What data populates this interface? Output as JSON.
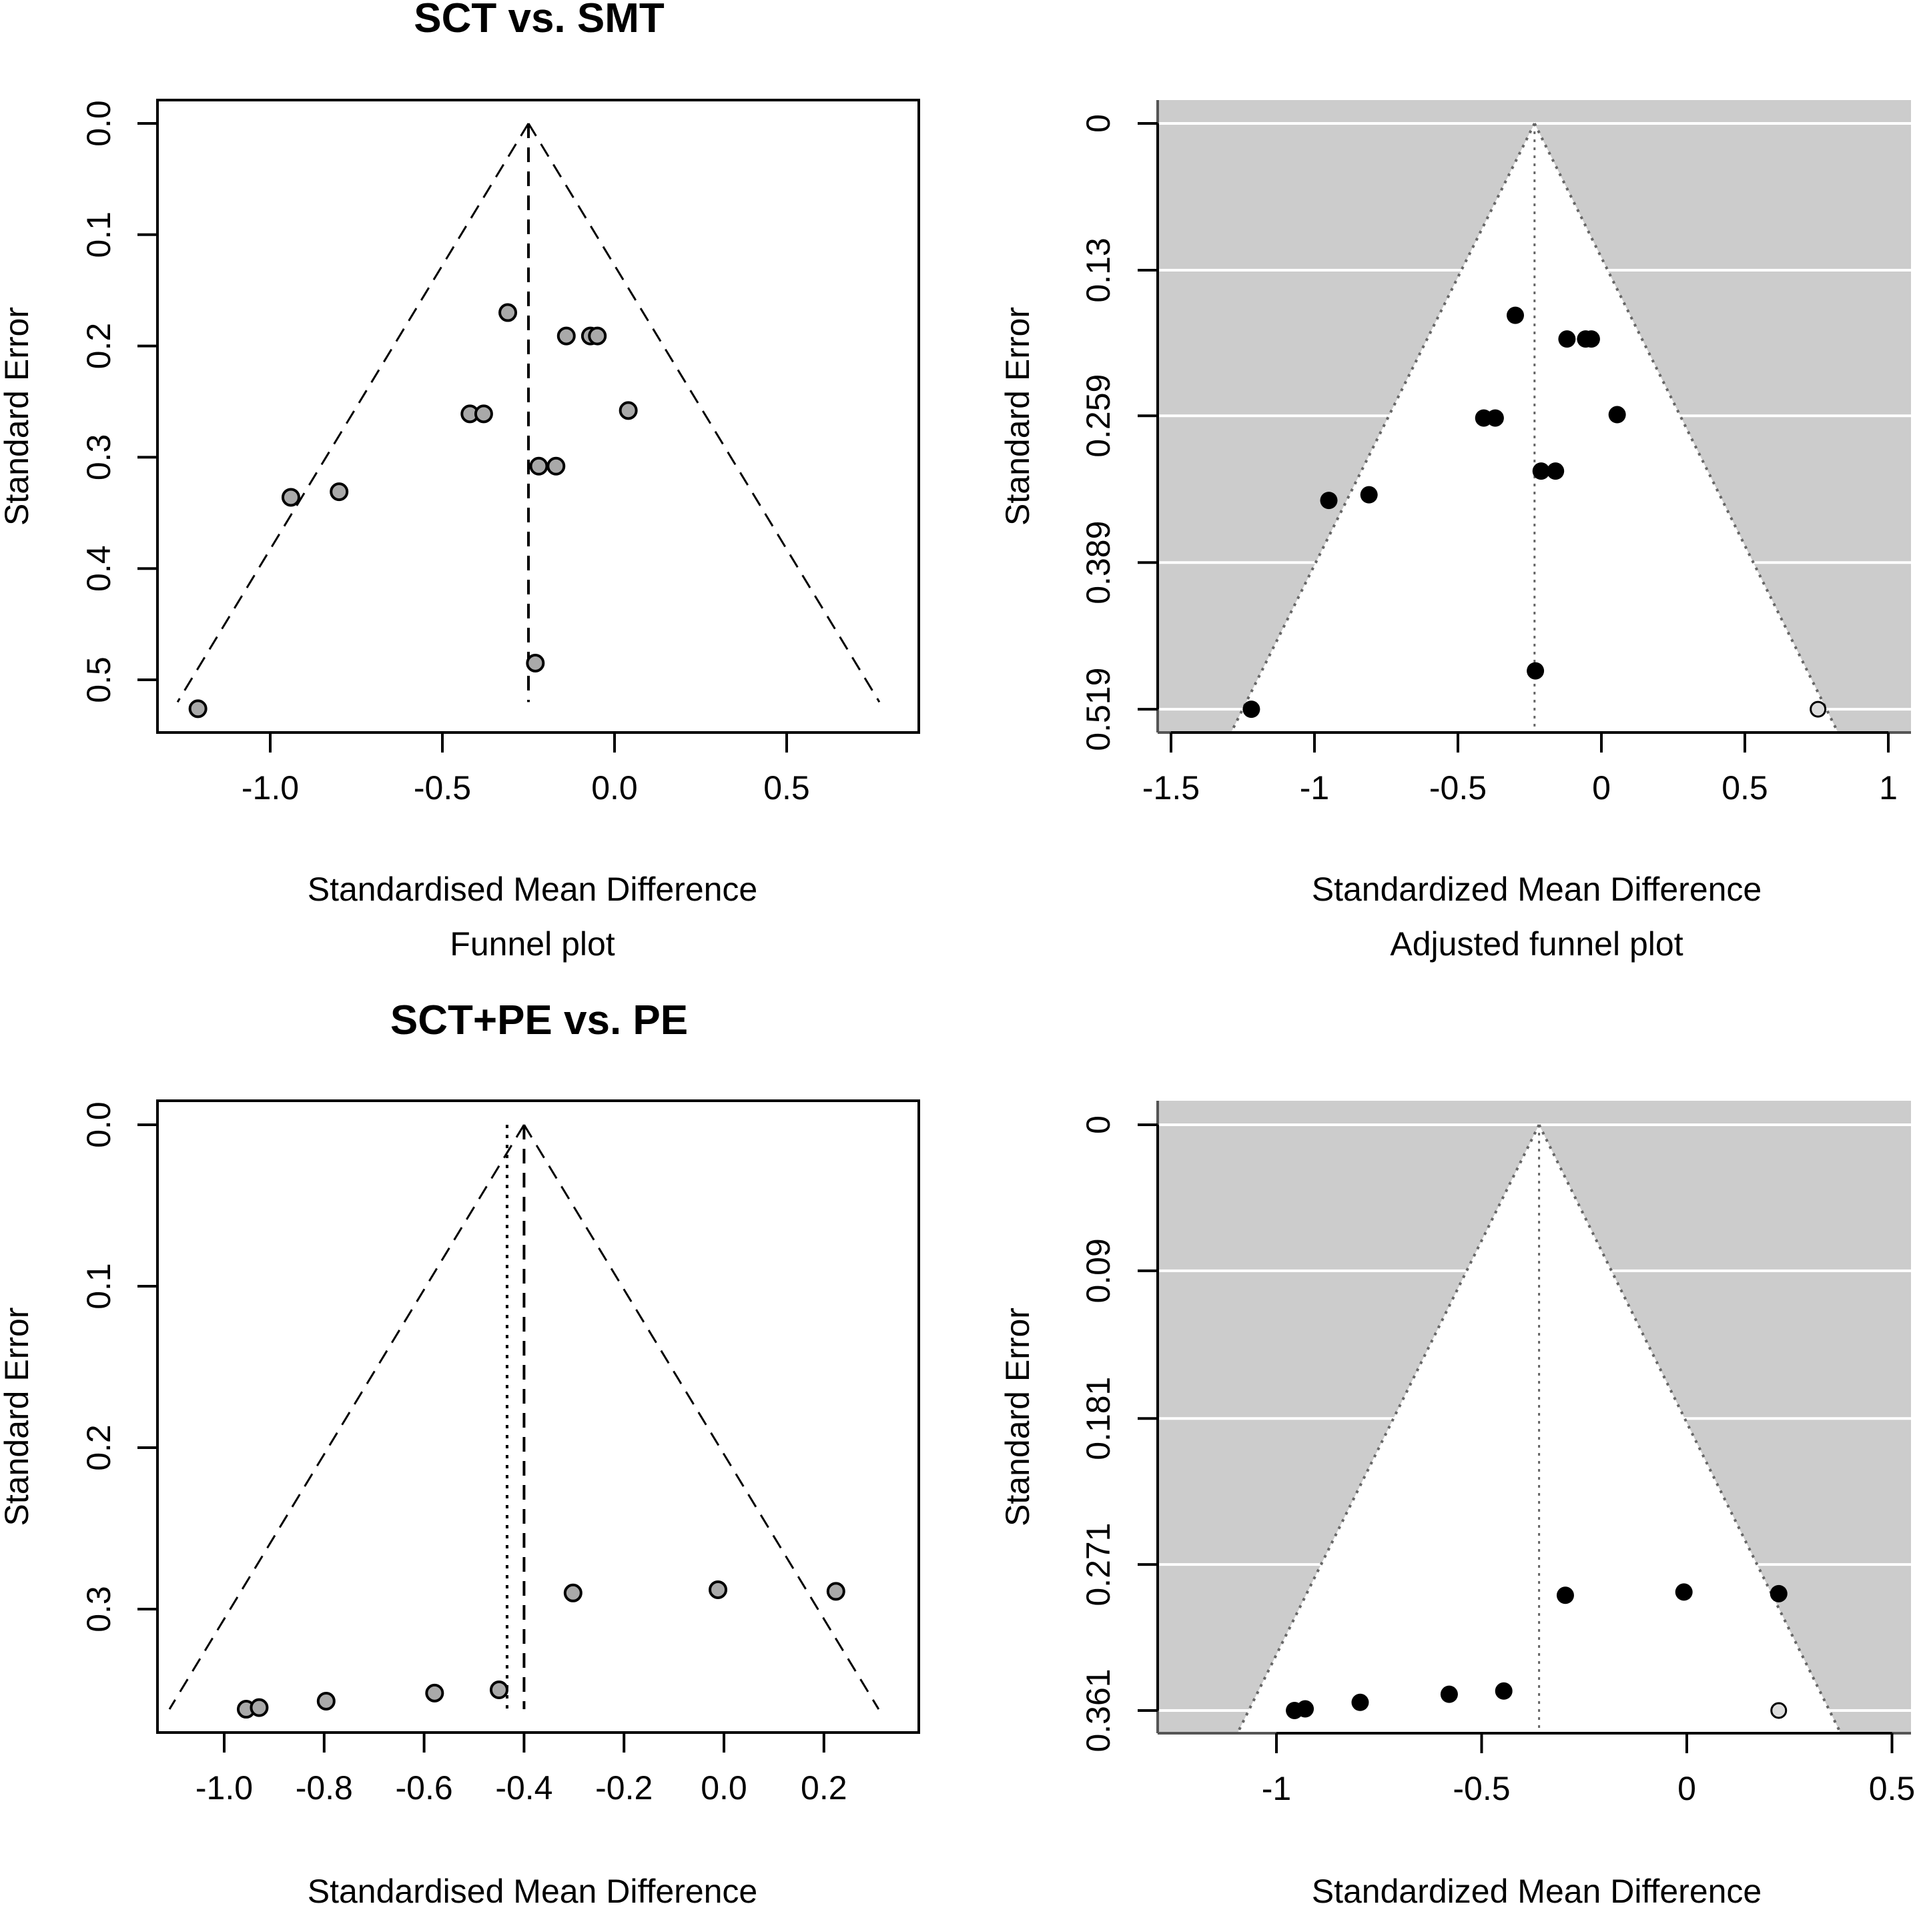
{
  "chart_data": [
    {
      "type": "scatter",
      "subtype": "funnel",
      "title": "SCT vs. SMT",
      "xlabel": "Standardised Mean Difference",
      "subtitle": "Funnel plot",
      "ylabel": "Standard Error",
      "x_ticks": [
        "-1.0",
        "-0.5",
        "0.0",
        "0.5"
      ],
      "x_tick_values": [
        -1.0,
        -0.5,
        0.0,
        0.5
      ],
      "y_ticks": [
        "0.0",
        "0.1",
        "0.2",
        "0.3",
        "0.4",
        "0.5"
      ],
      "y_tick_values": [
        0.0,
        0.1,
        0.2,
        0.3,
        0.4,
        0.5
      ],
      "y_reversed": true,
      "pooled_estimate": -0.25,
      "funnel_max_se": 0.52,
      "point_style": "filled gray circle",
      "points": [
        {
          "smd": -1.21,
          "se": 0.526
        },
        {
          "smd": -0.94,
          "se": 0.336
        },
        {
          "smd": -0.8,
          "se": 0.331
        },
        {
          "smd": -0.42,
          "se": 0.261
        },
        {
          "smd": -0.38,
          "se": 0.261
        },
        {
          "smd": -0.31,
          "se": 0.17
        },
        {
          "smd": -0.22,
          "se": 0.308
        },
        {
          "smd": -0.17,
          "se": 0.308
        },
        {
          "smd": -0.14,
          "se": 0.191
        },
        {
          "smd": -0.07,
          "se": 0.191
        },
        {
          "smd": -0.05,
          "se": 0.191
        },
        {
          "smd": 0.04,
          "se": 0.258
        },
        {
          "smd": -0.23,
          "se": 0.485
        }
      ]
    },
    {
      "type": "scatter",
      "subtype": "trim-and-fill funnel",
      "title": "",
      "xlabel": "Standardized Mean Difference",
      "subtitle": "Adjusted funnel plot",
      "ylabel": "Standard Error",
      "x_ticks": [
        "-1.5",
        "-1",
        "-0.5",
        "0",
        "0.5",
        "1"
      ],
      "x_tick_values": [
        -1.5,
        -1,
        -0.5,
        0,
        0.5,
        1
      ],
      "y_ticks": [
        "0",
        "0.13",
        "0.259",
        "0.389",
        "0.519"
      ],
      "y_tick_values": [
        0,
        0.13,
        0.259,
        0.389,
        0.519
      ],
      "y_reversed": true,
      "grid": true,
      "shading_color": "#cccccc",
      "pooled_estimate": -0.233,
      "points": [
        {
          "smd": -1.22,
          "se": 0.519,
          "filled": true
        },
        {
          "smd": -0.95,
          "se": 0.334,
          "filled": true
        },
        {
          "smd": -0.81,
          "se": 0.329,
          "filled": true
        },
        {
          "smd": -0.41,
          "se": 0.261,
          "filled": true
        },
        {
          "smd": -0.37,
          "se": 0.261,
          "filled": true
        },
        {
          "smd": -0.3,
          "se": 0.17,
          "filled": true
        },
        {
          "smd": -0.21,
          "se": 0.308,
          "filled": true
        },
        {
          "smd": -0.16,
          "se": 0.308,
          "filled": true
        },
        {
          "smd": -0.12,
          "se": 0.191,
          "filled": true
        },
        {
          "smd": -0.055,
          "se": 0.191,
          "filled": true
        },
        {
          "smd": -0.035,
          "se": 0.191,
          "filled": true
        },
        {
          "smd": 0.055,
          "se": 0.258,
          "filled": true
        },
        {
          "smd": -0.23,
          "se": 0.485,
          "filled": true
        },
        {
          "smd": 0.755,
          "se": 0.519,
          "filled": false
        }
      ]
    },
    {
      "type": "scatter",
      "subtype": "funnel",
      "title": "SCT+PE vs. PE",
      "xlabel": "Standardised Mean Difference",
      "subtitle": "Funnel plot",
      "ylabel": "Standard Error",
      "x_ticks": [
        "-1.0",
        "-0.8",
        "-0.6",
        "-0.4",
        "-0.2",
        "0.0",
        "0.2"
      ],
      "x_tick_values": [
        -1.0,
        -0.8,
        -0.6,
        -0.4,
        -0.2,
        0.0,
        0.2
      ],
      "y_ticks": [
        "0.0",
        "0.1",
        "0.2",
        "0.3"
      ],
      "y_tick_values": [
        0.0,
        0.1,
        0.2,
        0.3
      ],
      "y_reversed": true,
      "pooled_estimate": -0.4,
      "random_effects_estimate": -0.434,
      "funnel_max_se": 0.362,
      "point_style": "filled gray circle",
      "points": [
        {
          "smd": -0.956,
          "se": 0.362
        },
        {
          "smd": -0.93,
          "se": 0.361
        },
        {
          "smd": -0.796,
          "se": 0.357
        },
        {
          "smd": -0.579,
          "se": 0.352
        },
        {
          "smd": -0.45,
          "se": 0.35
        },
        {
          "smd": -0.302,
          "se": 0.29
        },
        {
          "smd": -0.012,
          "se": 0.288
        },
        {
          "smd": 0.224,
          "se": 0.289
        }
      ]
    },
    {
      "type": "scatter",
      "subtype": "trim-and-fill funnel",
      "title": "",
      "xlabel": "Standardized Mean Difference",
      "subtitle": "Adjusted funnel plot",
      "ylabel": "Standard Error",
      "x_ticks": [
        "-1",
        "-0.5",
        "0",
        "0.5"
      ],
      "x_tick_values": [
        -1,
        -0.5,
        0,
        0.5
      ],
      "y_ticks": [
        "0",
        "0.09",
        "0.181",
        "0.271",
        "0.361"
      ],
      "y_tick_values": [
        0,
        0.09,
        0.181,
        0.271,
        0.361
      ],
      "y_reversed": true,
      "grid": true,
      "shading_color": "#cccccc",
      "pooled_estimate": -0.36,
      "points": [
        {
          "smd": -0.956,
          "se": 0.361,
          "filled": true
        },
        {
          "smd": -0.93,
          "se": 0.36,
          "filled": true
        },
        {
          "smd": -0.796,
          "se": 0.356,
          "filled": true
        },
        {
          "smd": -0.579,
          "se": 0.351,
          "filled": true
        },
        {
          "smd": -0.446,
          "se": 0.349,
          "filled": true
        },
        {
          "smd": -0.296,
          "se": 0.29,
          "filled": true
        },
        {
          "smd": -0.007,
          "se": 0.288,
          "filled": true
        },
        {
          "smd": 0.224,
          "se": 0.289,
          "filled": true
        },
        {
          "smd": 0.224,
          "se": 0.361,
          "filled": false
        }
      ]
    }
  ]
}
